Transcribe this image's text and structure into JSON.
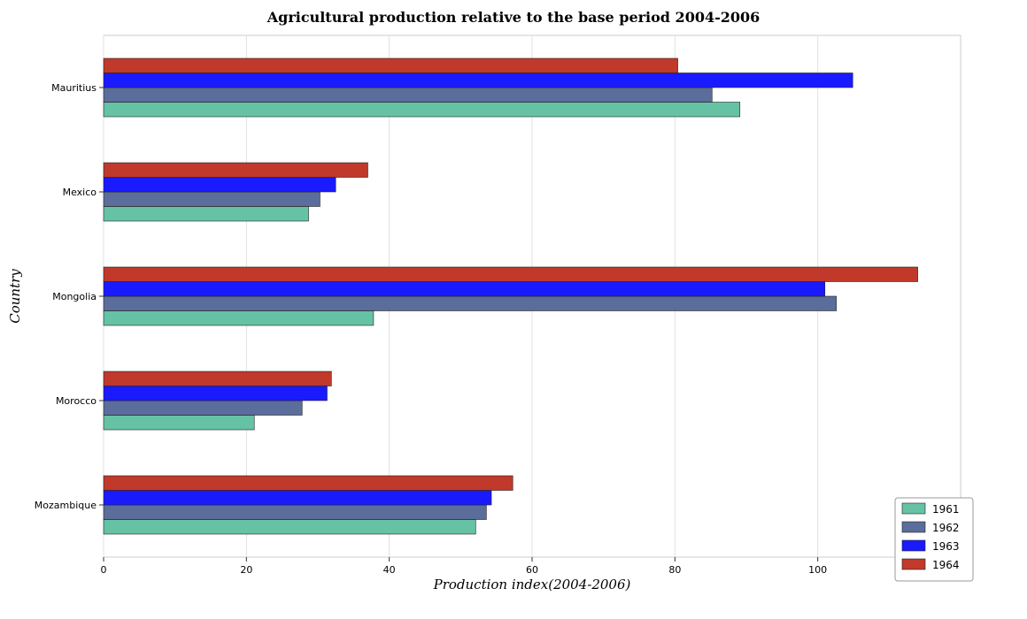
{
  "chart_data": {
    "type": "bar",
    "orientation": "horizontal",
    "title": "Agricultural production relative to the base period 2004-2006",
    "xlabel": "Production index(2004-2006)",
    "ylabel": "Country",
    "categories": [
      "Mauritius",
      "Mexico",
      "Mongolia",
      "Morocco",
      "Mozambique"
    ],
    "xlim": [
      0,
      120
    ],
    "xticks": [
      "0",
      "20",
      "40",
      "60",
      "80",
      "100"
    ],
    "grid": true,
    "legend_position": "bottom-right",
    "series": [
      {
        "name": "1961",
        "color": "#66c2a5",
        "values": [
          89.1,
          28.7,
          37.8,
          21.1,
          52.1
        ]
      },
      {
        "name": "1962",
        "color": "#5b6d9a",
        "values": [
          85.2,
          30.3,
          102.6,
          27.8,
          53.6
        ]
      },
      {
        "name": "1963",
        "color": "#1a1aff",
        "values": [
          104.9,
          32.5,
          101.0,
          31.3,
          54.3
        ]
      },
      {
        "name": "1964",
        "color": "#c0392b",
        "values": [
          80.4,
          37.0,
          114.0,
          31.9,
          57.3
        ]
      }
    ]
  }
}
